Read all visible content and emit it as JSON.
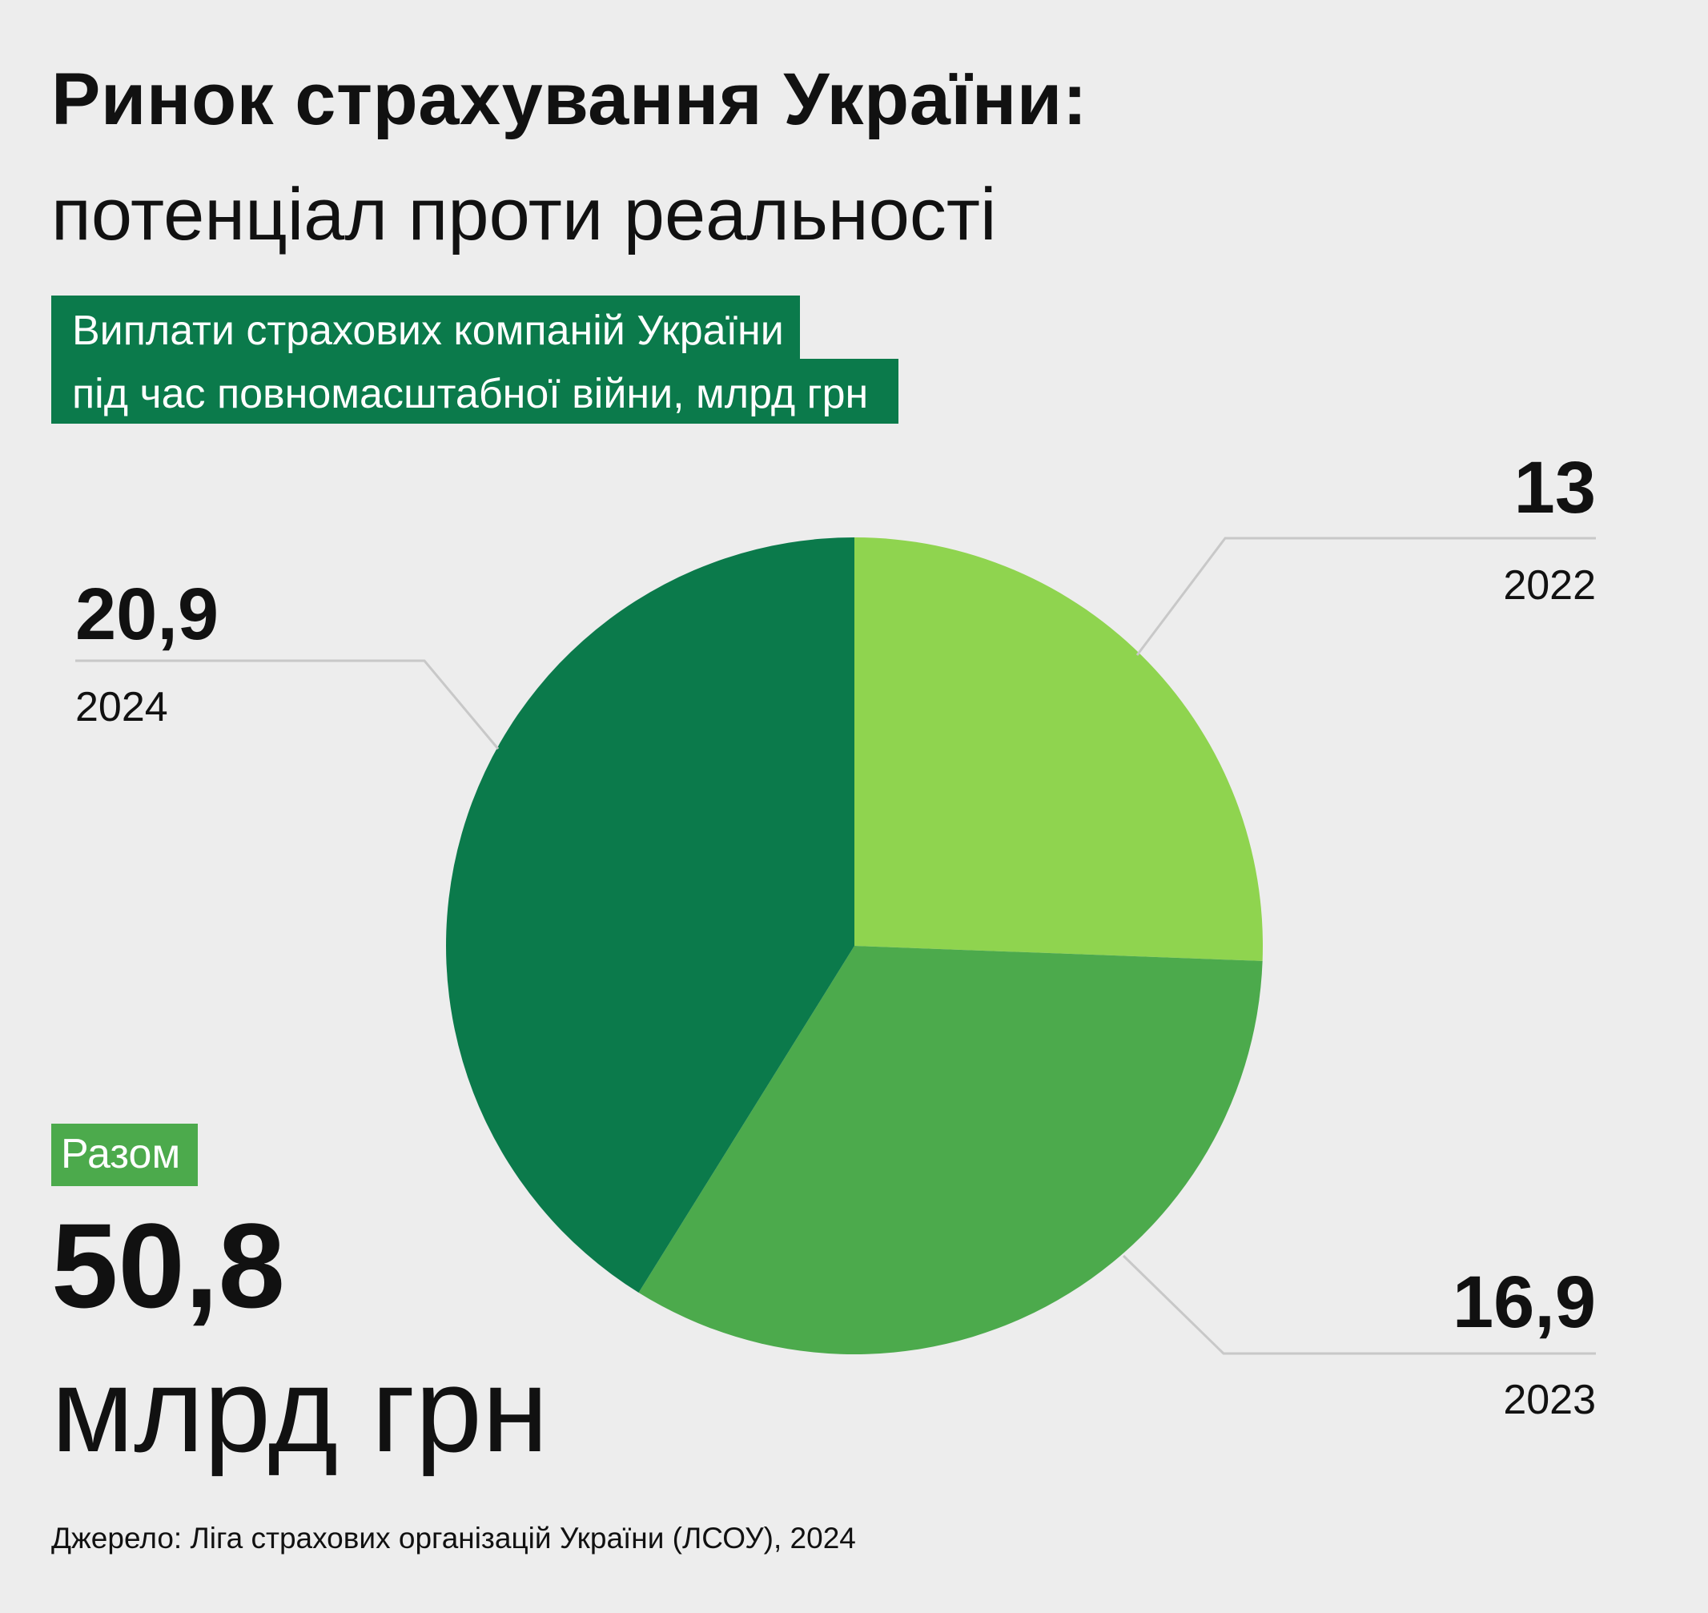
{
  "header": {
    "title": "Ринок страхування України:",
    "subtitle": "потенціал проти реальності"
  },
  "tag": {
    "line1": "Виплати страхових компаній України",
    "line2": "під час повномасштабної війни, млрд грн"
  },
  "total": {
    "label": "Разом",
    "value": "50,8",
    "unit": "млрд грн"
  },
  "source": "Джерело: Ліга страхових організацій України (ЛСОУ), 2024",
  "colors": {
    "background": "#ededed",
    "dark_green": "#0b7a4b",
    "mid_green": "#4caa4c",
    "light_green": "#8fd44f",
    "leader": "#c8c8c8"
  },
  "chart_data": {
    "type": "pie",
    "start": "12 o'clock, clockwise",
    "slices": [
      {
        "category": "2022",
        "value": 13,
        "label": "13",
        "color": "#8fd44f"
      },
      {
        "category": "2023",
        "value": 16.9,
        "label": "16,9",
        "color": "#4caa4c"
      },
      {
        "category": "2024",
        "value": 20.9,
        "label": "20,9",
        "color": "#0b7a4b"
      }
    ]
  }
}
